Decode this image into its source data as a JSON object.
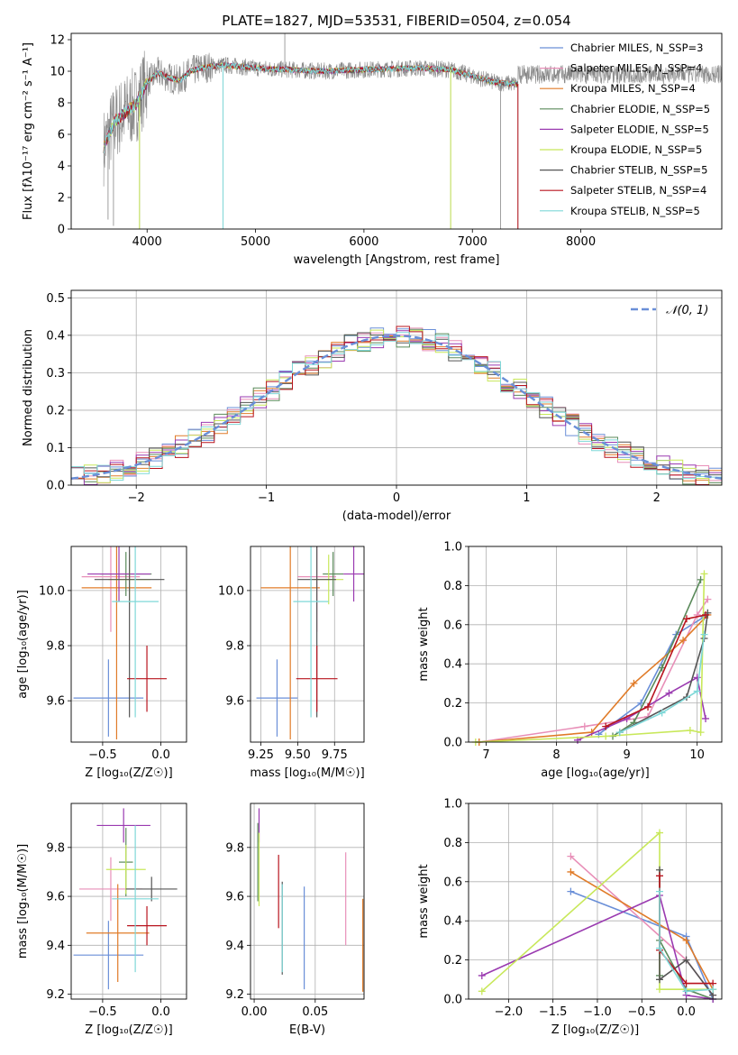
{
  "colors": {
    "chabrier_miles": "#6a8fd8",
    "salpeter_miles": "#e88fb8",
    "kroupa_miles": "#e07b28",
    "chabrier_elodie": "#5a8a5a",
    "salpeter_elodie": "#9a3ab0",
    "kroupa_elodie": "#c8e85a",
    "chabrier_stelib": "#555555",
    "salpeter_stelib": "#b8141e",
    "kroupa_stelib": "#7fd8d8",
    "data": "#888888",
    "gauss": "#6a8fd8"
  },
  "chart_data": [
    {
      "type": "line",
      "title": "PLATE=1827, MJD=53531, FIBERID=0504, z=0.054",
      "xlabel": "wavelength [Angstrom, rest frame]",
      "ylabel": "Flux [fλ10⁻¹⁷ erg cm⁻² s⁻¹ A⁻¹]",
      "xlim": [
        3300,
        9300
      ],
      "ylim": [
        0,
        12.4
      ],
      "xticks": [
        "4000",
        "5000",
        "6000",
        "7000",
        "8000"
      ],
      "yticks": [
        "0",
        "2",
        "4",
        "6",
        "8",
        "10",
        "12"
      ],
      "legend_position": "right",
      "legend": [
        "Chabrier MILES, N_SSP=3",
        "Salpeter MILES, N_SSP=4",
        "Kroupa MILES, N_SSP=4",
        "Chabrier ELODIE, N_SSP=5",
        "Salpeter ELODIE, N_SSP=5",
        "Kroupa ELODIE, N_SSP=5",
        "Chabrier STELIB, N_SSP=5",
        "Salpeter STELIB, N_SSP=4",
        "Kroupa STELIB, N_SSP=5"
      ],
      "model_trend_x": [
        3600,
        3700,
        3800,
        3900,
        4000,
        4100,
        4200,
        4300,
        4400,
        4500,
        4700,
        5000,
        5300,
        5600,
        6000,
        6500,
        6800,
        7000,
        7200,
        7400
      ],
      "model_trend_y": [
        5.2,
        6.8,
        7.4,
        7.9,
        9.3,
        9.9,
        9.6,
        9.4,
        10.0,
        10.2,
        10.4,
        10.2,
        10.1,
        10.0,
        10.1,
        10.2,
        10.1,
        9.7,
        9.3,
        9.2
      ],
      "grid": false
    },
    {
      "type": "line",
      "xlabel": "(data-model)/error",
      "ylabel": "Normed distribution",
      "xlim": [
        -2.5,
        2.5
      ],
      "ylim": [
        0,
        0.52
      ],
      "xticks": [
        "−2",
        "−1",
        "0",
        "1",
        "2"
      ],
      "yticks": [
        "0.0",
        "0.1",
        "0.2",
        "0.3",
        "0.4",
        "0.5"
      ],
      "legend": [
        "𝒩(0, 1)"
      ],
      "legend_position": "top-right",
      "grid": true
    },
    {
      "type": "scatter",
      "xlabel": "Z [log₁₀(Z/Z☉)]",
      "ylabel": "age  [log₁₀(age/yr)]",
      "xlim": [
        -0.77,
        0.22
      ],
      "ylim": [
        9.45,
        10.16
      ],
      "xticks": [
        "−0.5",
        "0.0"
      ],
      "yticks": [
        "9.6",
        "9.8",
        "10.0"
      ],
      "grid": true,
      "points": [
        {
          "model": "chabrier_miles",
          "x": -0.45,
          "y": 9.61,
          "xerr": 0.3,
          "yerr": 0.14
        },
        {
          "model": "salpeter_miles",
          "x": -0.43,
          "y": 10.05,
          "xerr": 0.25,
          "yerr": 0.2
        },
        {
          "model": "kroupa_miles",
          "x": -0.38,
          "y": 10.01,
          "xerr": 0.3,
          "yerr": 0.55
        },
        {
          "model": "chabrier_elodie",
          "x": -0.3,
          "y": 10.06,
          "xerr": 0.22,
          "yerr": 0.08
        },
        {
          "model": "salpeter_elodie",
          "x": -0.36,
          "y": 10.06,
          "xerr": 0.27,
          "yerr": 0.1
        },
        {
          "model": "kroupa_elodie",
          "x": -0.27,
          "y": 10.04,
          "xerr": 0.18,
          "yerr": 0.09
        },
        {
          "model": "chabrier_stelib",
          "x": -0.27,
          "y": 10.04,
          "xerr": 0.3,
          "yerr": 0.5
        },
        {
          "model": "salpeter_stelib",
          "x": -0.12,
          "y": 9.68,
          "xerr": 0.17,
          "yerr": 0.12
        },
        {
          "model": "kroupa_stelib",
          "x": -0.22,
          "y": 9.96,
          "xerr": 0.2,
          "yerr": 0.42
        }
      ]
    },
    {
      "type": "scatter",
      "xlabel": "mass [log₁₀(M/M☉)]",
      "ylabel": "",
      "xlim": [
        9.18,
        9.95
      ],
      "ylim": [
        9.45,
        10.16
      ],
      "xticks": [
        "9.25",
        "9.50",
        "9.75"
      ],
      "yticks": [
        "9.6",
        "9.8",
        "10.0"
      ],
      "grid": true,
      "points": [
        {
          "model": "chabrier_miles",
          "x": 9.36,
          "y": 9.61,
          "xerr": 0.14,
          "yerr": 0.14
        },
        {
          "model": "salpeter_miles",
          "x": 9.63,
          "y": 10.05,
          "xerr": 0.13,
          "yerr": 0.2
        },
        {
          "model": "kroupa_miles",
          "x": 9.45,
          "y": 10.01,
          "xerr": 0.2,
          "yerr": 0.55
        },
        {
          "model": "chabrier_elodie",
          "x": 9.74,
          "y": 10.06,
          "xerr": 0.07,
          "yerr": 0.08
        },
        {
          "model": "salpeter_elodie",
          "x": 9.88,
          "y": 10.06,
          "xerr": 0.07,
          "yerr": 0.1
        },
        {
          "model": "kroupa_elodie",
          "x": 9.71,
          "y": 10.04,
          "xerr": 0.1,
          "yerr": 0.09
        },
        {
          "model": "chabrier_stelib",
          "x": 9.63,
          "y": 10.04,
          "xerr": 0.13,
          "yerr": 0.5
        },
        {
          "model": "salpeter_stelib",
          "x": 9.63,
          "y": 9.68,
          "xerr": 0.14,
          "yerr": 0.12
        },
        {
          "model": "kroupa_stelib",
          "x": 9.59,
          "y": 9.96,
          "xerr": 0.12,
          "yerr": 0.42
        }
      ]
    },
    {
      "type": "line",
      "xlabel": "age  [log₁₀(age/yr)]",
      "ylabel": "mass weight",
      "xlim": [
        6.75,
        10.35
      ],
      "ylim": [
        0,
        1
      ],
      "xticks": [
        "7",
        "8",
        "9",
        "10"
      ],
      "yticks": [
        "0.0",
        "0.2",
        "0.4",
        "0.6",
        "0.8",
        "1.0"
      ],
      "grid": true,
      "series": [
        {
          "model": "chabrier_miles",
          "x": [
            8.6,
            9.2,
            9.7,
            10.1
          ],
          "y": [
            0.04,
            0.2,
            0.55,
            0.64
          ]
        },
        {
          "model": "salpeter_miles",
          "x": [
            6.9,
            8.4,
            9.3,
            10.0,
            10.15
          ],
          "y": [
            0.0,
            0.08,
            0.13,
            0.65,
            0.73
          ]
        },
        {
          "model": "kroupa_miles",
          "x": [
            6.9,
            8.5,
            9.1,
            9.8,
            10.15
          ],
          "y": [
            0.0,
            0.05,
            0.3,
            0.52,
            0.65
          ]
        },
        {
          "model": "chabrier_elodie",
          "x": [
            8.8,
            9.1,
            9.5,
            10.05
          ],
          "y": [
            0.03,
            0.1,
            0.38,
            0.83
          ]
        },
        {
          "model": "salpeter_elodie",
          "x": [
            8.3,
            9.0,
            9.6,
            10.0,
            10.12
          ],
          "y": [
            0.01,
            0.12,
            0.25,
            0.33,
            0.12
          ]
        },
        {
          "model": "kroupa_elodie",
          "x": [
            6.85,
            8.7,
            9.9,
            10.05,
            10.1
          ],
          "y": [
            0.0,
            0.03,
            0.06,
            0.05,
            0.86
          ]
        },
        {
          "model": "chabrier_stelib",
          "x": [
            8.9,
            9.85,
            10.1,
            10.15
          ],
          "y": [
            0.05,
            0.23,
            0.53,
            0.66
          ]
        },
        {
          "model": "salpeter_stelib",
          "x": [
            8.7,
            9.3,
            9.85,
            10.12
          ],
          "y": [
            0.08,
            0.18,
            0.63,
            0.65
          ]
        },
        {
          "model": "kroupa_stelib",
          "x": [
            8.9,
            9.5,
            10.0,
            10.1
          ],
          "y": [
            0.05,
            0.15,
            0.26,
            0.55
          ]
        }
      ]
    },
    {
      "type": "scatter",
      "xlabel": "Z [log₁₀(Z/Z☉)]",
      "ylabel": "mass [log₁₀(M/M☉)]",
      "xlim": [
        -0.77,
        0.22
      ],
      "ylim": [
        9.18,
        9.98
      ],
      "xticks": [
        "−0.5",
        "0.0"
      ],
      "yticks": [
        "9.2",
        "9.4",
        "9.6",
        "9.8"
      ],
      "grid": true,
      "points": [
        {
          "model": "chabrier_miles",
          "x": -0.45,
          "y": 9.36,
          "xerr": 0.3,
          "yerr": 0.14
        },
        {
          "model": "salpeter_miles",
          "x": -0.43,
          "y": 9.63,
          "xerr": 0.27,
          "yerr": 0.13
        },
        {
          "model": "kroupa_miles",
          "x": -0.37,
          "y": 9.45,
          "xerr": 0.27,
          "yerr": 0.2
        },
        {
          "model": "chabrier_elodie",
          "x": -0.3,
          "y": 9.74,
          "xerr": 0.06,
          "yerr": 0.14
        },
        {
          "model": "salpeter_elodie",
          "x": -0.32,
          "y": 9.89,
          "xerr": 0.23,
          "yerr": 0.07
        },
        {
          "model": "kroupa_elodie",
          "x": -0.3,
          "y": 9.71,
          "xerr": 0.17,
          "yerr": 0.1
        },
        {
          "model": "chabrier_stelib",
          "x": -0.08,
          "y": 9.63,
          "xerr": 0.22,
          "yerr": 0.05
        },
        {
          "model": "salpeter_stelib",
          "x": -0.12,
          "y": 9.48,
          "xerr": 0.17,
          "yerr": 0.08
        },
        {
          "model": "kroupa_stelib",
          "x": -0.22,
          "y": 9.59,
          "xerr": 0.2,
          "yerr": 0.3
        }
      ]
    },
    {
      "type": "scatter",
      "xlabel": "E(B-V)",
      "ylabel": "",
      "xlim": [
        -0.003,
        0.09
      ],
      "ylim": [
        9.18,
        9.98
      ],
      "xticks": [
        "0.00",
        "0.05"
      ],
      "yticks": [
        "9.2",
        "9.4",
        "9.6",
        "9.8"
      ],
      "grid": true,
      "points": [
        {
          "model": "chabrier_miles",
          "x": 0.041,
          "y": 9.43,
          "yerr": 0.21
        },
        {
          "model": "salpeter_miles",
          "x": 0.075,
          "y": 9.59,
          "yerr": 0.19
        },
        {
          "model": "kroupa_miles",
          "x": 0.089,
          "y": 9.4,
          "yerr": 0.19
        },
        {
          "model": "chabrier_elodie",
          "x": 0.003,
          "y": 9.74,
          "yerr": 0.16
        },
        {
          "model": "salpeter_elodie",
          "x": 0.004,
          "y": 9.89,
          "yerr": 0.07
        },
        {
          "model": "kroupa_elodie",
          "x": 0.004,
          "y": 9.71,
          "yerr": 0.15
        },
        {
          "model": "chabrier_stelib",
          "x": 0.023,
          "y": 9.47,
          "yerr": 0.19
        },
        {
          "model": "salpeter_stelib",
          "x": 0.02,
          "y": 9.62,
          "yerr": 0.15
        },
        {
          "model": "kroupa_stelib",
          "x": 0.023,
          "y": 9.47,
          "yerr": 0.18
        }
      ]
    },
    {
      "type": "line",
      "xlabel": "Z [log₁₀(Z/Z☉)]",
      "ylabel": "mass weight",
      "xlim": [
        -2.45,
        0.4
      ],
      "ylim": [
        0,
        1
      ],
      "xticks": [
        "−2.0",
        "−1.5",
        "−1.0",
        "−0.5",
        "0.0"
      ],
      "yticks": [
        "0.0",
        "0.2",
        "0.4",
        "0.6",
        "0.8",
        "1.0"
      ],
      "grid": true,
      "series": [
        {
          "model": "chabrier_miles",
          "x": [
            -1.3,
            0.0,
            0.3
          ],
          "y": [
            0.55,
            0.32,
            0.0
          ]
        },
        {
          "model": "salpeter_miles",
          "x": [
            -1.3,
            0.0,
            0.3
          ],
          "y": [
            0.73,
            0.2,
            0.02
          ]
        },
        {
          "model": "kroupa_miles",
          "x": [
            -1.3,
            0.0,
            0.3
          ],
          "y": [
            0.65,
            0.3,
            0.05
          ]
        },
        {
          "model": "chabrier_elodie",
          "x": [
            -0.3,
            -0.3,
            0.0,
            0.3
          ],
          "y": [
            0.12,
            0.3,
            0.05,
            0.0
          ]
        },
        {
          "model": "salpeter_elodie",
          "x": [
            -2.3,
            -0.3,
            0.0,
            0.3
          ],
          "y": [
            0.12,
            0.53,
            0.02,
            0.0
          ]
        },
        {
          "model": "kroupa_elodie",
          "x": [
            -2.3,
            -0.3,
            -0.3,
            0.3
          ],
          "y": [
            0.04,
            0.85,
            0.05,
            0.05
          ]
        },
        {
          "model": "chabrier_stelib",
          "x": [
            -0.3,
            -0.3,
            0.0,
            0.3
          ],
          "y": [
            0.66,
            0.1,
            0.2,
            0.02
          ]
        },
        {
          "model": "salpeter_stelib",
          "x": [
            -0.3,
            -0.3,
            0.0,
            0.3
          ],
          "y": [
            0.63,
            0.25,
            0.08,
            0.08
          ]
        },
        {
          "model": "kroupa_stelib",
          "x": [
            -0.3,
            -0.3,
            0.0,
            0.3
          ],
          "y": [
            0.55,
            0.26,
            0.04,
            0.05
          ]
        }
      ]
    }
  ]
}
